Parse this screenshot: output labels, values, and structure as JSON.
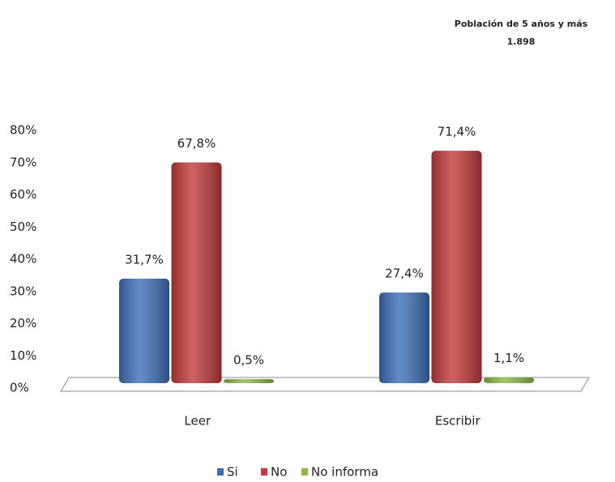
{
  "chart_data": {
    "type": "bar",
    "title": "Población de 5 años y más",
    "subtitle": "1.898",
    "categories": [
      "Leer",
      "Escribir"
    ],
    "series": [
      {
        "name": "Si",
        "color": "#3d6fb6",
        "values": [
          31.7,
          27.4
        ],
        "value_labels": [
          "31,7%",
          "27,4%"
        ]
      },
      {
        "name": "No",
        "color": "#c0393b",
        "values": [
          67.8,
          71.4
        ],
        "value_labels": [
          "67,8%",
          "71,4%"
        ]
      },
      {
        "name": "No informa",
        "color": "#8cb54a",
        "values": [
          0.5,
          1.1
        ],
        "value_labels": [
          "0,5%",
          "1,1%"
        ]
      }
    ],
    "ylim": [
      0,
      80
    ],
    "yticks": [
      {
        "value": 0,
        "label": "0%"
      },
      {
        "value": 10,
        "label": "10%"
      },
      {
        "value": 20,
        "label": "20%"
      },
      {
        "value": 30,
        "label": "30%"
      },
      {
        "value": 40,
        "label": "40%"
      },
      {
        "value": 50,
        "label": "50%"
      },
      {
        "value": 60,
        "label": "60%"
      },
      {
        "value": 70,
        "label": "70%"
      },
      {
        "value": 80,
        "label": "80%"
      }
    ],
    "legend": "bottom"
  }
}
